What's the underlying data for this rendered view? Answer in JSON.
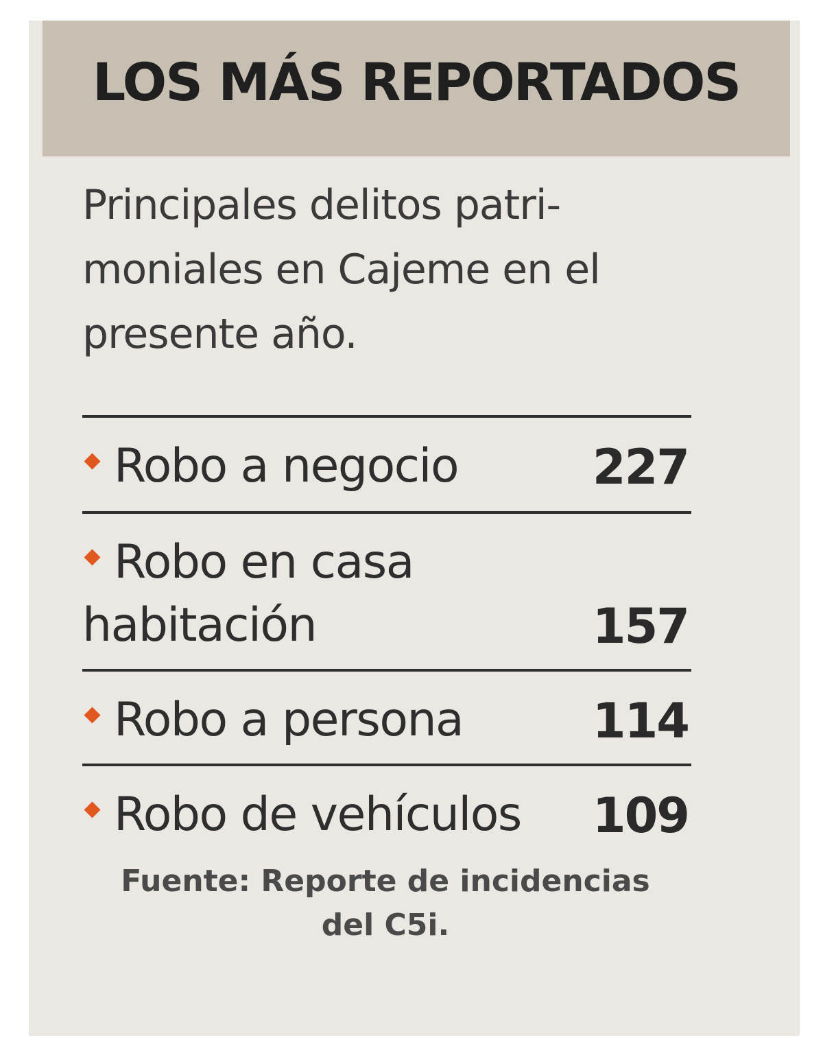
{
  "header": {
    "title": "LOS MÁS REPORTADOS"
  },
  "intro": {
    "lines": [
      "Principales delitos patri-",
      "moniales en Cajeme en el",
      "presente año."
    ]
  },
  "colors": {
    "header_band": "#c7bfb1",
    "card_background": "#ebe8e3",
    "bullet": "#e0581e",
    "text": "#2e2e2e"
  },
  "chart_data": {
    "type": "table",
    "title": "LOS MÁS REPORTADOS",
    "subtitle": "Principales delitos patrimoniales en Cajeme en el presente año.",
    "rows": [
      {
        "label": "Robo a negocio",
        "label_lines": [
          "Robo a negocio"
        ],
        "value": 227
      },
      {
        "label": "Robo en casa habitación",
        "label_lines": [
          "Robo en casa",
          "habitación"
        ],
        "value": 157
      },
      {
        "label": "Robo a persona",
        "label_lines": [
          "Robo a persona"
        ],
        "value": 114
      },
      {
        "label": "Robo de vehículos",
        "label_lines": [
          "Robo de vehículos"
        ],
        "value": 109
      }
    ],
    "source": "Fuente: Reporte de incidencias del C5i."
  },
  "source": {
    "lines": [
      "Fuente: Reporte de incidencias",
      "del C5i."
    ]
  }
}
